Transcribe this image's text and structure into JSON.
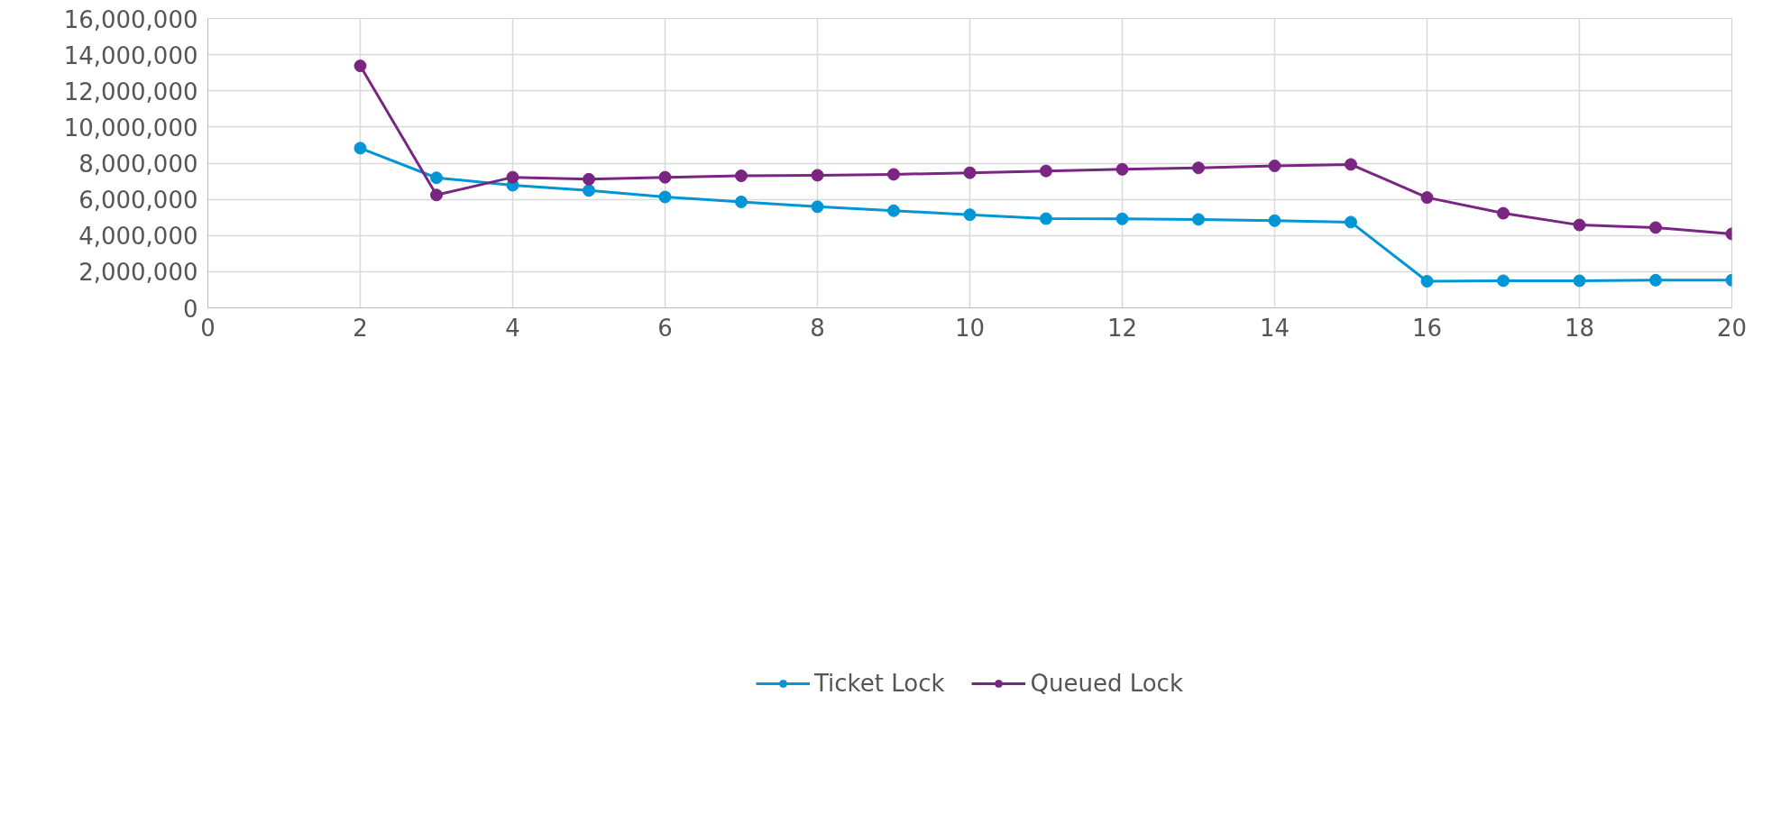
{
  "chart_data": {
    "type": "line",
    "x": [
      2,
      3,
      4,
      5,
      6,
      7,
      8,
      9,
      10,
      11,
      12,
      13,
      14,
      15,
      16,
      17,
      18,
      19,
      20
    ],
    "series": [
      {
        "name": "Ticket Lock",
        "color": "#0096d6",
        "values": [
          8830000,
          7190000,
          6780000,
          6490000,
          6130000,
          5860000,
          5590000,
          5370000,
          5150000,
          4930000,
          4920000,
          4890000,
          4820000,
          4740000,
          1470000,
          1500000,
          1500000,
          1530000,
          1530000
        ]
      },
      {
        "name": "Queued Lock",
        "color": "#7b2582",
        "values": [
          13380000,
          6240000,
          7220000,
          7110000,
          7220000,
          7300000,
          7330000,
          7380000,
          7470000,
          7570000,
          7660000,
          7740000,
          7850000,
          7930000,
          6100000,
          5230000,
          4580000,
          4440000,
          4090000
        ]
      }
    ],
    "xlim": [
      0,
      20
    ],
    "xticks": [
      0,
      2,
      4,
      6,
      8,
      10,
      12,
      14,
      16,
      18,
      20
    ],
    "ylim": [
      0,
      16000000
    ],
    "yticks": [
      {
        "value": 0,
        "label": "0"
      },
      {
        "value": 2000000,
        "label": "2,000,000"
      },
      {
        "value": 4000000,
        "label": "4,000,000"
      },
      {
        "value": 6000000,
        "label": "6,000,000"
      },
      {
        "value": 8000000,
        "label": "8,000,000"
      },
      {
        "value": 10000000,
        "label": "10,000,000"
      },
      {
        "value": 12000000,
        "label": "12,000,000"
      },
      {
        "value": 14000000,
        "label": "14,000,000"
      },
      {
        "value": 16000000,
        "label": "16,000,000"
      }
    ],
    "grid": true,
    "legend": "bottom",
    "marker": "circle",
    "line_style": "solid"
  }
}
